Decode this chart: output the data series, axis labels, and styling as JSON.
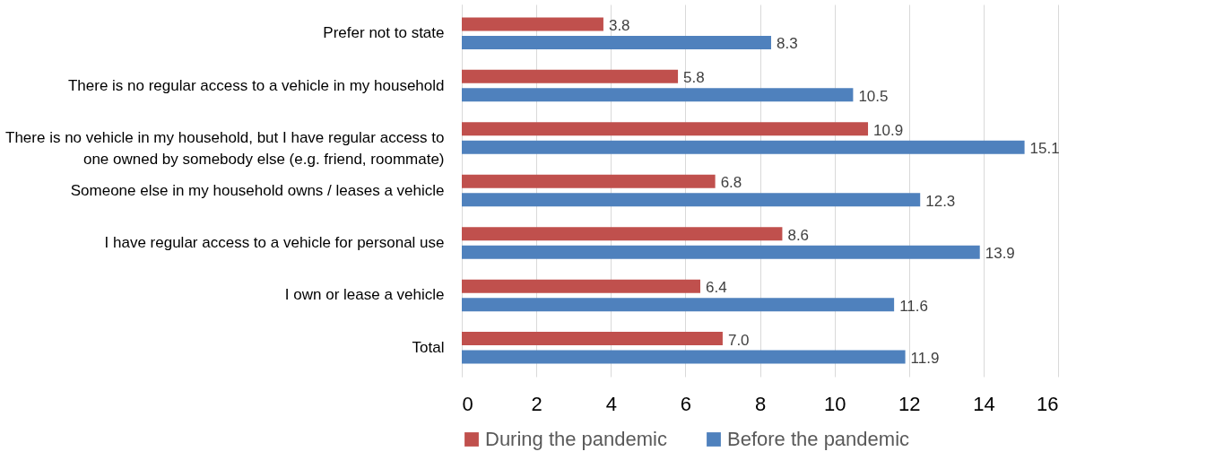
{
  "chart_data": {
    "type": "bar",
    "orientation": "horizontal",
    "categories": [
      "Prefer not to state",
      "There is no regular access to a vehicle in my household",
      "There is no vehicle in my household, but I have regular access to one owned by somebody else (e.g. friend, roommate)",
      "Someone else in my household owns / leases a vehicle",
      "I have regular access to a vehicle for personal use",
      "I own or lease a vehicle",
      "Total"
    ],
    "series": [
      {
        "name": "During the pandemic",
        "color": "#c0504d",
        "values": [
          3.8,
          5.8,
          10.9,
          6.8,
          8.6,
          6.4,
          7.0
        ],
        "value_labels": [
          "3.8",
          "5.8",
          "10.9",
          "6.8",
          "8.6",
          "6.4",
          "7.0"
        ]
      },
      {
        "name": "Before the pandemic",
        "color": "#4f81bd",
        "values": [
          8.3,
          10.5,
          15.1,
          12.3,
          13.9,
          11.6,
          11.9
        ],
        "value_labels": [
          "8.3",
          "10.5",
          "15.1",
          "12.3",
          "13.9",
          "11.6",
          "11.9"
        ]
      }
    ],
    "xlim": [
      0,
      16
    ],
    "xticks": [
      0,
      2,
      4,
      6,
      8,
      10,
      12,
      14,
      16
    ],
    "grid": "x",
    "legend": "bottom"
  }
}
